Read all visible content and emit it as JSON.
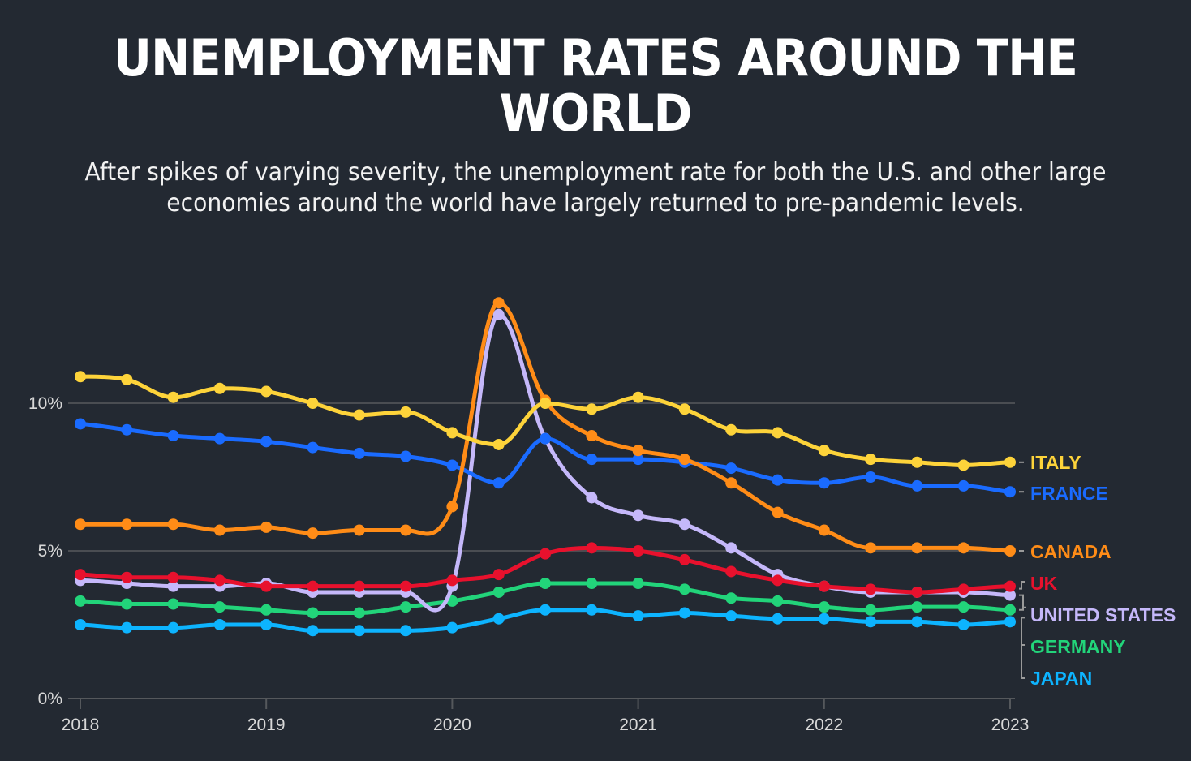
{
  "title": "UNEMPLOYMENT RATES AROUND THE WORLD",
  "subtitle": "After spikes of varying severity, the unemployment rate for both the U.S. and other large economies around the world have largely returned to pre-pandemic levels.",
  "chart_data": {
    "type": "line",
    "title": "UNEMPLOYMENT RATES AROUND THE WORLD",
    "xlabel": "",
    "ylabel": "",
    "x_frequency": "quarterly",
    "x": [
      "2018 Q1",
      "2018 Q2",
      "2018 Q3",
      "2018 Q4",
      "2019 Q1",
      "2019 Q2",
      "2019 Q3",
      "2019 Q4",
      "2020 Q1",
      "2020 Q2",
      "2020 Q3",
      "2020 Q4",
      "2021 Q1",
      "2021 Q2",
      "2021 Q3",
      "2021 Q4",
      "2022 Q1",
      "2022 Q2",
      "2022 Q3",
      "2022 Q4",
      "2023 Q1"
    ],
    "x_tick_labels": [
      "2018",
      "2019",
      "2020",
      "2021",
      "2022",
      "2023"
    ],
    "y_tick_labels": [
      "0%",
      "5%",
      "10%"
    ],
    "y_ticks": [
      0,
      5,
      10
    ],
    "ylim": [
      0,
      13.5
    ],
    "grid": "horizontal",
    "legend": "right (direct labels at line ends)",
    "series": [
      {
        "name": "ITALY",
        "color": "#FDD33A",
        "values": [
          10.9,
          10.8,
          10.2,
          10.5,
          10.4,
          10.0,
          9.6,
          9.7,
          9.0,
          8.6,
          10.0,
          9.8,
          10.2,
          9.8,
          9.1,
          9.0,
          8.4,
          8.1,
          8.0,
          7.9,
          8.0
        ]
      },
      {
        "name": "FRANCE",
        "color": "#1A6BFF",
        "values": [
          9.3,
          9.1,
          8.9,
          8.8,
          8.7,
          8.5,
          8.3,
          8.2,
          7.9,
          7.3,
          8.8,
          8.1,
          8.1,
          8.0,
          7.8,
          7.4,
          7.3,
          7.5,
          7.2,
          7.2,
          7.0
        ]
      },
      {
        "name": "CANADA",
        "color": "#FF8C17",
        "values": [
          5.9,
          5.9,
          5.9,
          5.7,
          5.8,
          5.6,
          5.7,
          5.7,
          6.5,
          13.4,
          10.1,
          8.9,
          8.4,
          8.1,
          7.3,
          6.3,
          5.7,
          5.1,
          5.1,
          5.1,
          5.0
        ]
      },
      {
        "name": "UK",
        "color": "#E8112D",
        "values": [
          4.2,
          4.1,
          4.1,
          4.0,
          3.8,
          3.8,
          3.8,
          3.8,
          4.0,
          4.2,
          4.9,
          5.1,
          5.0,
          4.7,
          4.3,
          4.0,
          3.8,
          3.7,
          3.6,
          3.7,
          3.8
        ]
      },
      {
        "name": "UNITED STATES",
        "color": "#C5B8FA",
        "values": [
          4.0,
          3.9,
          3.8,
          3.8,
          3.9,
          3.6,
          3.6,
          3.6,
          3.8,
          13.0,
          8.8,
          6.8,
          6.2,
          5.9,
          5.1,
          4.2,
          3.8,
          3.6,
          3.6,
          3.6,
          3.5
        ]
      },
      {
        "name": "GERMANY",
        "color": "#22D47A",
        "values": [
          3.3,
          3.2,
          3.2,
          3.1,
          3.0,
          2.9,
          2.9,
          3.1,
          3.3,
          3.6,
          3.9,
          3.9,
          3.9,
          3.7,
          3.4,
          3.3,
          3.1,
          3.0,
          3.1,
          3.1,
          3.0
        ]
      },
      {
        "name": "JAPAN",
        "color": "#0DB4FF",
        "values": [
          2.5,
          2.4,
          2.4,
          2.5,
          2.5,
          2.3,
          2.3,
          2.3,
          2.4,
          2.7,
          3.0,
          3.0,
          2.8,
          2.9,
          2.8,
          2.7,
          2.7,
          2.6,
          2.6,
          2.5,
          2.6
        ]
      }
    ]
  },
  "colors": {
    "background": "#232932",
    "gridline": "#4a4d52",
    "axis": "#55585c",
    "tick_text": "#d8d8d8",
    "connector": "#9a9a9a"
  }
}
